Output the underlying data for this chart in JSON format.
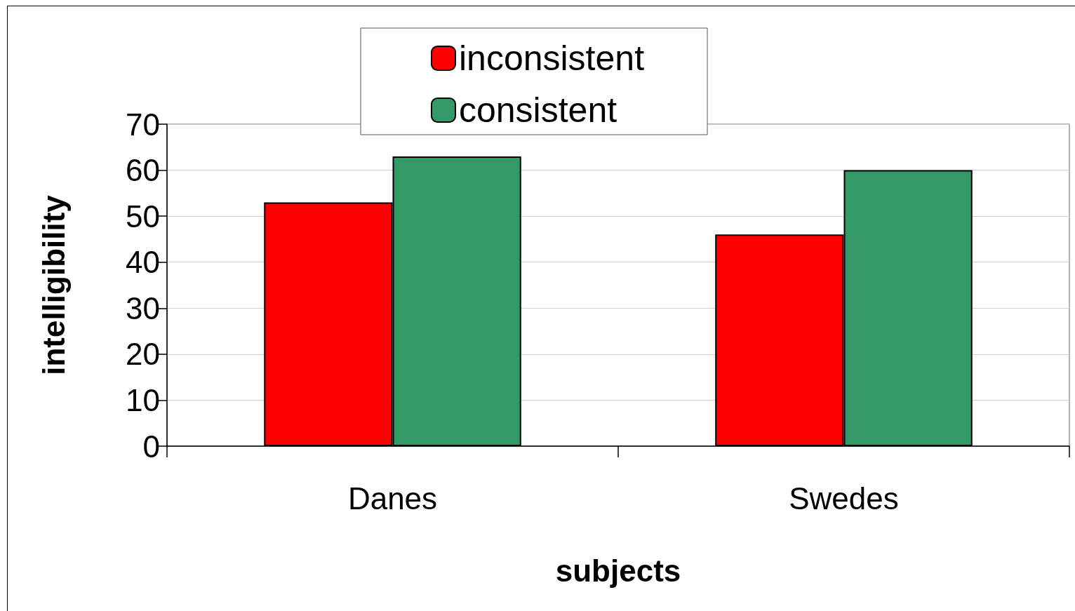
{
  "chart_data": {
    "type": "bar",
    "xlabel": "subjects",
    "ylabel": "intelligibility",
    "categories": [
      "Danes",
      "Swedes"
    ],
    "series": [
      {
        "name": "inconsistent",
        "color": "#ff0000",
        "values": [
          53,
          46
        ]
      },
      {
        "name": "consistent",
        "color": "#339966",
        "values": [
          63,
          60
        ]
      }
    ],
    "ylim": [
      0,
      70
    ],
    "yticks": [
      0,
      10,
      20,
      30,
      40,
      50,
      60,
      70
    ],
    "grid": "y",
    "legend": "top"
  }
}
